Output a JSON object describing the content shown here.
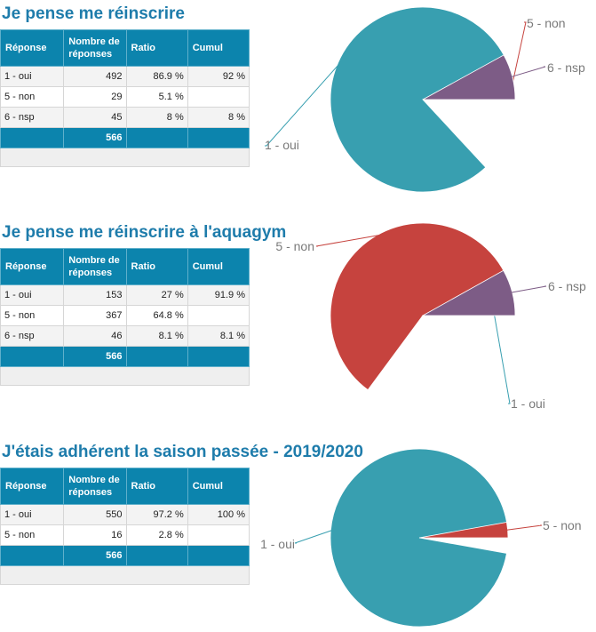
{
  "headers": {
    "reponse": "Réponse",
    "nombre": "Nombre de réponses",
    "ratio": "Ratio",
    "cumul": "Cumul"
  },
  "chart_data": [
    {
      "type": "pie",
      "title": "Je pense me réinscrire",
      "rows": [
        {
          "label": "1 - oui",
          "count": "492",
          "ratio": "86.9 %",
          "cumul": "92 %"
        },
        {
          "label": "5 - non",
          "count": "29",
          "ratio": "5.1 %",
          "cumul": ""
        },
        {
          "label": "6 - nsp",
          "count": "45",
          "ratio": "8 %",
          "cumul": "8 %"
        }
      ],
      "total": "566",
      "slices": [
        {
          "name": "1 - oui",
          "value": 86.9,
          "color": "#389fb0"
        },
        {
          "name": "5 - non",
          "value": 5.1,
          "color": "#c6433e"
        },
        {
          "name": "6 - nsp",
          "value": 8.0,
          "color": "#7d5c86"
        }
      ]
    },
    {
      "type": "pie",
      "title": "Je pense me réinscrire à l'aquagym",
      "rows": [
        {
          "label": "1 - oui",
          "count": "153",
          "ratio": "27 %",
          "cumul": "91.9 %"
        },
        {
          "label": "5 - non",
          "count": "367",
          "ratio": "64.8 %",
          "cumul": ""
        },
        {
          "label": "6 - nsp",
          "count": "46",
          "ratio": "8.1 %",
          "cumul": "8.1 %"
        }
      ],
      "total": "566",
      "slices": [
        {
          "name": "1 - oui",
          "value": 27.0,
          "color": "#389fb0"
        },
        {
          "name": "5 - non",
          "value": 64.8,
          "color": "#c6433e"
        },
        {
          "name": "6 - nsp",
          "value": 8.1,
          "color": "#7d5c86"
        }
      ]
    },
    {
      "type": "pie",
      "title": "J'étais adhérent la saison passée - 2019/2020",
      "rows": [
        {
          "label": "1 - oui",
          "count": "550",
          "ratio": "97.2 %",
          "cumul": "100 %"
        },
        {
          "label": "5 - non",
          "count": "16",
          "ratio": "2.8 %",
          "cumul": ""
        }
      ],
      "total": "566",
      "slices": [
        {
          "name": "1 - oui",
          "value": 97.2,
          "color": "#389fb0"
        },
        {
          "name": "5 - non",
          "value": 2.8,
          "color": "#c6433e"
        }
      ]
    }
  ]
}
